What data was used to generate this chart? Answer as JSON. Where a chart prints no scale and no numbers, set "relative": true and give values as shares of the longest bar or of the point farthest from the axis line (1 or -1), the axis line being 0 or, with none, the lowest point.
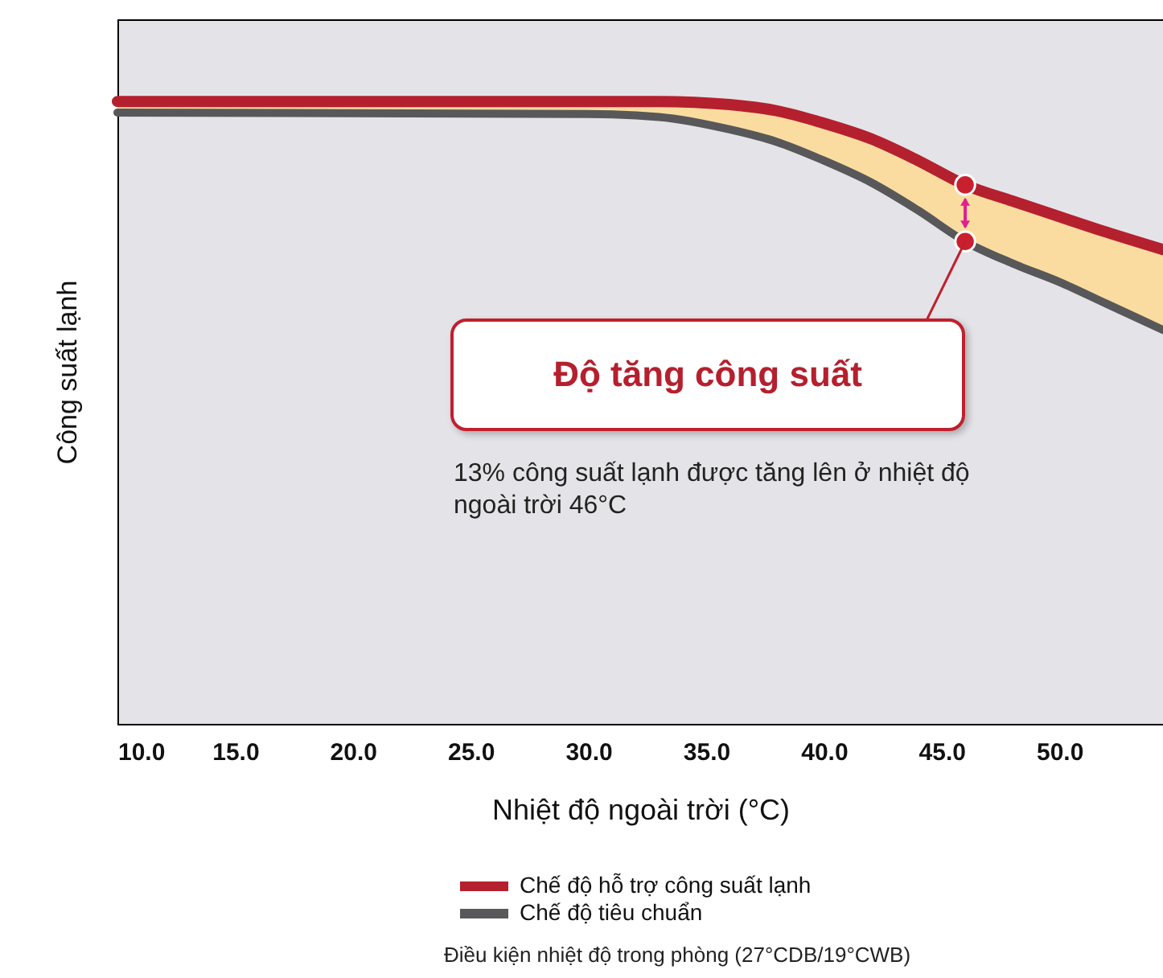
{
  "chart_data": {
    "type": "line",
    "relative": true,
    "xlabel": "Nhiệt độ ngoài trời (°C)",
    "ylabel": "Công suất lạnh",
    "x": [
      10,
      30,
      33,
      36,
      38,
      40,
      42,
      44,
      46,
      48,
      50,
      52,
      54.4
    ],
    "xlim": [
      10,
      54.4
    ],
    "xticks": [
      {
        "value": 10,
        "label": "10.0"
      },
      {
        "value": 15,
        "label": "15.0"
      },
      {
        "value": 20,
        "label": "20.0"
      },
      {
        "value": 25,
        "label": "25.0"
      },
      {
        "value": 30,
        "label": "30.0"
      },
      {
        "value": 35,
        "label": "35.0"
      },
      {
        "value": 40,
        "label": "40.0"
      },
      {
        "value": 45,
        "label": "45.0"
      },
      {
        "value": 50,
        "label": "50.0"
      }
    ],
    "series": [
      {
        "name": "Chế độ hỗ trợ công suất lạnh",
        "color": "#b5202e",
        "values": [
          1,
          1,
          1,
          0.995,
          0.985,
          0.965,
          0.94,
          0.905,
          0.866,
          0.84,
          0.815,
          0.79,
          0.762
        ],
        "lower": [
          0.982,
          0.98,
          0.975,
          0.955,
          0.935,
          0.905,
          0.87,
          0.825,
          0.775,
          0.74,
          0.71,
          0.675,
          0.633
        ],
        "upper": [
          1,
          1,
          1,
          0.995,
          0.985,
          0.965,
          0.94,
          0.905,
          0.866,
          0.84,
          0.815,
          0.79,
          0.762
        ]
      },
      {
        "name": "Chế độ tiêu chuẩn",
        "color": "#58585a",
        "values": [
          0.982,
          0.98,
          0.975,
          0.955,
          0.935,
          0.905,
          0.87,
          0.825,
          0.775,
          0.74,
          0.71,
          0.675,
          0.633
        ]
      },
      {
        "type": "scatter",
        "color": "#c8202e",
        "x": [
          46,
          46
        ],
        "values": [
          0.866,
          0.775
        ]
      }
    ],
    "legend": "bottom",
    "grid": false,
    "annotations": [
      "Độ tăng công suất",
      "13% công suất lạnh được tăng lên ở nhiệt độ ngoài trời 46°C",
      "Điều kiện nhiệt độ trong phòng (27°CDB/19°CWB)"
    ]
  }
}
